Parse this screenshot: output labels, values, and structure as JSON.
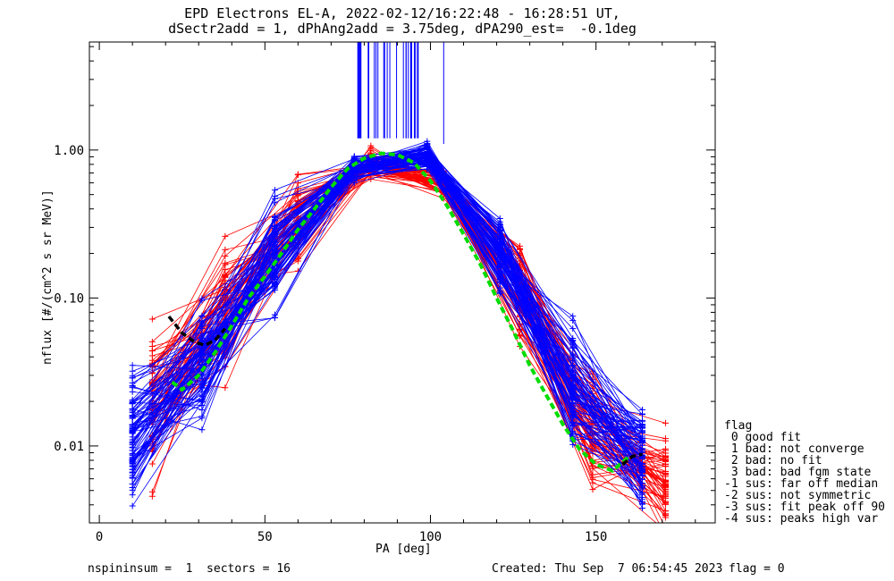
{
  "header": {
    "title_line1": "EPD Electrons EL-A, 2022-02-12/16:22:48 - 16:28:51 UT,",
    "title_line2": "dSectr2add = 1, dPhAng2add = 3.75deg, dPA290_est=  -0.1deg"
  },
  "footer": {
    "left": "nspininsum =  1  sectors = 16",
    "created": "Created: Thu Sep  7 06:54:45 2023",
    "flag": "flag = 0"
  },
  "legend": {
    "title": "flag",
    "items": [
      " 0 good fit",
      " 1 bad: not converge",
      " 2 bad: no fit",
      " 3 bad: bad fgm state",
      "-1 sus: far off median",
      "-2 sus: not symmetric",
      "-3 sus: fit peak off 90",
      "-4 sus: peaks high var"
    ]
  },
  "colors": {
    "blue": "#0000ff",
    "red": "#ff0000",
    "green": "#00dd00",
    "black": "#000000"
  },
  "chart_data": {
    "type": "line",
    "xlabel": "PA [deg]",
    "ylabel": "nflux [#/(cm^2 s sr MeV)]",
    "xlim": [
      -3,
      186
    ],
    "ylim_log10": [
      -2.52,
      0.73
    ],
    "yscale": "log",
    "xticks": [
      0,
      50,
      100,
      150
    ],
    "xtick_labels": [
      "0",
      "50",
      "100",
      "150"
    ],
    "yticks": [
      0.01,
      0.1,
      1.0
    ],
    "ytick_labels": [
      "0.01",
      "0.10",
      "1.00"
    ],
    "grid": false,
    "pa_bins_blue": [
      10,
      31,
      53,
      77,
      99,
      121,
      143,
      164
    ],
    "pa_bins_red": [
      16,
      38,
      60,
      82,
      104,
      127,
      149,
      171
    ],
    "series": [
      {
        "color": "green",
        "dashed": true,
        "x": [
          22,
          25,
          30,
          35,
          40,
          45,
          50,
          55,
          60,
          65,
          70,
          75,
          80,
          85,
          90,
          95,
          100,
          105,
          110,
          115,
          120,
          125,
          130,
          135,
          140,
          145,
          150,
          155,
          160
        ],
        "y": [
          0.027,
          0.024,
          0.03,
          0.043,
          0.065,
          0.1,
          0.14,
          0.2,
          0.29,
          0.4,
          0.56,
          0.75,
          0.88,
          0.95,
          0.93,
          0.82,
          0.62,
          0.42,
          0.27,
          0.17,
          0.1,
          0.06,
          0.035,
          0.022,
          0.014,
          0.0095,
          0.0075,
          0.0068,
          0.0085
        ]
      },
      {
        "color": "black",
        "dashed": true,
        "x": [
          21,
          25,
          29,
          32,
          35,
          38
        ],
        "y": [
          0.075,
          0.058,
          0.05,
          0.048,
          0.052,
          0.062
        ]
      },
      {
        "color": "black",
        "dashed": true,
        "x": [
          158,
          161,
          164
        ],
        "y": [
          0.0075,
          0.0085,
          0.0088
        ]
      }
    ],
    "mean_profile_blue": [
      0.012,
      0.035,
      0.2,
      0.75,
      0.9,
      0.2,
      0.025,
      0.008
    ],
    "mean_profile_red": [
      0.02,
      0.08,
      0.35,
      0.8,
      0.6,
      0.1,
      0.012,
      0.006
    ],
    "spread_note": "many overlaid blue/red sweeps around these profiles"
  }
}
